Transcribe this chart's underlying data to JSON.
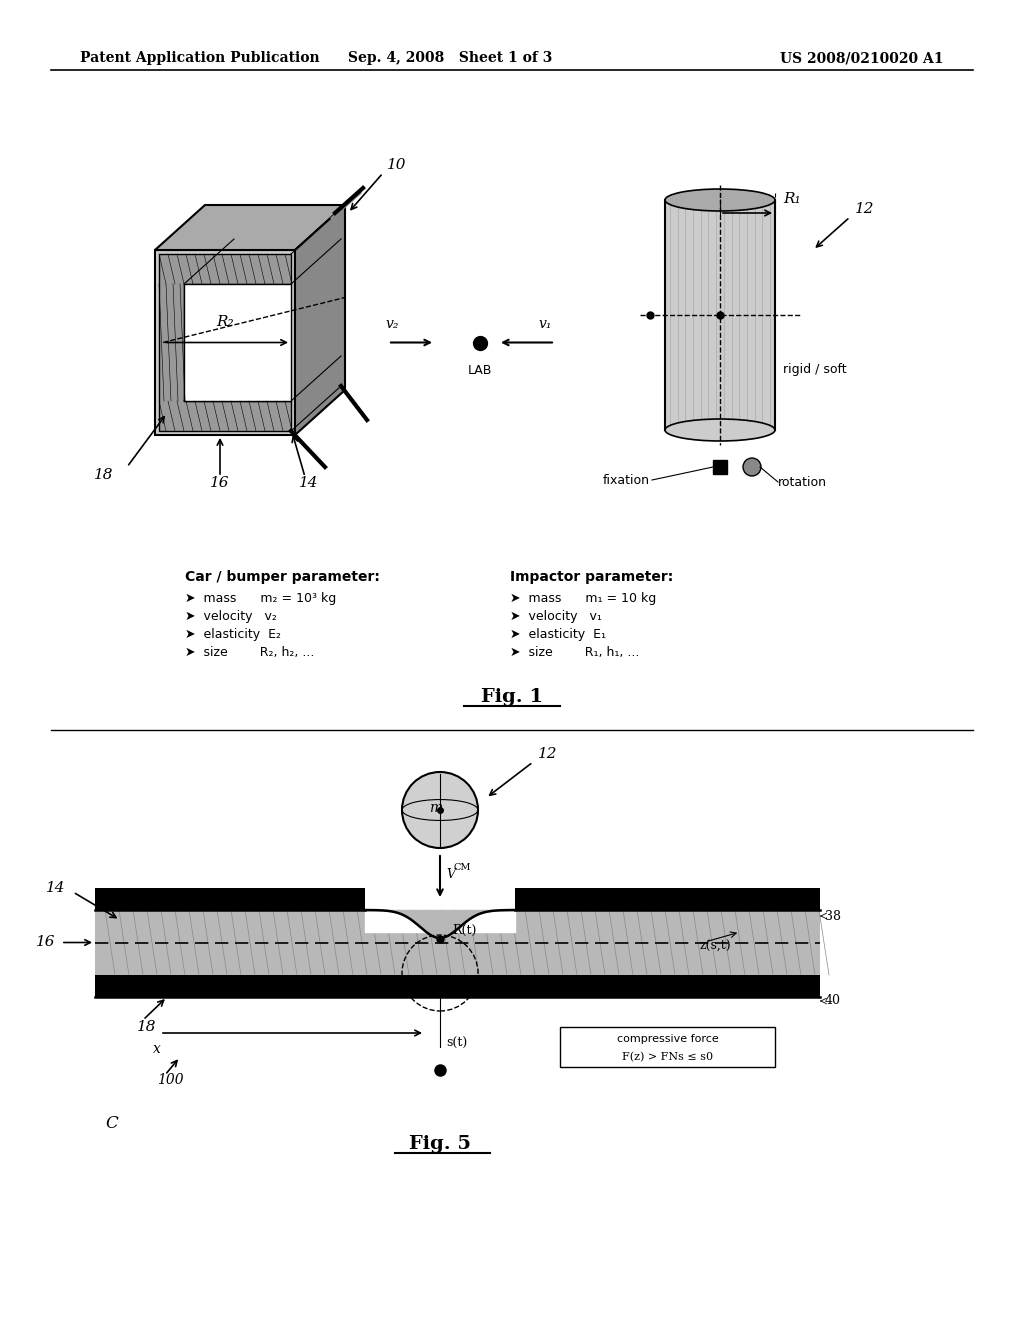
{
  "bg_color": "#ffffff",
  "header_left": "Patent Application Publication",
  "header_center": "Sep. 4, 2008   Sheet 1 of 3",
  "header_right": "US 2008/0210020 A1",
  "fig1_label": "Fig. 1",
  "fig5_label": "Fig. 5",
  "fig5_c_label": "C"
}
